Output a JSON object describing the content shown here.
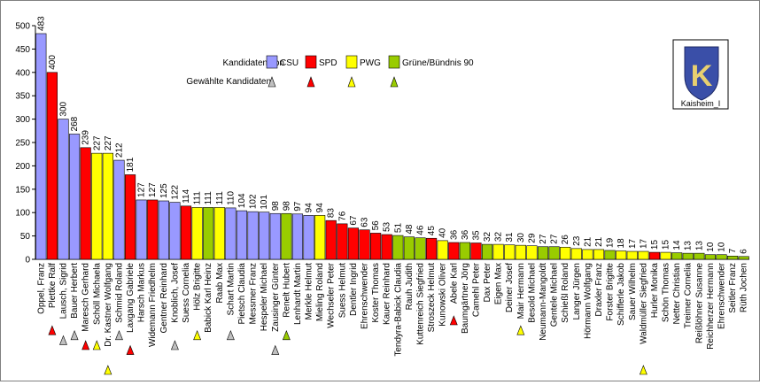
{
  "chart_data": {
    "type": "bar",
    "title": "",
    "xlabel": "",
    "ylabel": "",
    "ylim": [
      0,
      500
    ],
    "yticks": [
      0,
      50,
      100,
      150,
      200,
      250,
      300,
      350,
      400,
      450,
      500
    ],
    "grid": false,
    "legend_title": "Kandidaten von",
    "legend_elected_label": "Gewählte Kandidaten",
    "legend_placement": "top-center",
    "parties": [
      {
        "key": "CSU",
        "label": "CSU",
        "color": "#9999ff"
      },
      {
        "key": "SPD",
        "label": "SPD",
        "color": "#ff0000"
      },
      {
        "key": "PWG",
        "label": "PWG",
        "color": "#ffff00"
      },
      {
        "key": "GRUENE",
        "label": "Grüne/Bündnis 90",
        "color": "#99cc00"
      }
    ],
    "elected_colors": {
      "CSU": "#c0c0c0",
      "SPD": "#ff0000",
      "PWG": "#ffff00",
      "GRUENE": "#99cc00"
    },
    "candidates": [
      {
        "name": "Oppel, Franz",
        "value": 483,
        "party": "CSU",
        "elected": false
      },
      {
        "name": "Plettke Ralf",
        "value": 400,
        "party": "SPD",
        "elected": true
      },
      {
        "name": "Lausch, Sigrid",
        "value": 300,
        "party": "CSU",
        "elected": true
      },
      {
        "name": "Bauer Herbert",
        "value": 268,
        "party": "CSU",
        "elected": true
      },
      {
        "name": "Maresch Gerhard",
        "value": 239,
        "party": "SPD",
        "elected": true
      },
      {
        "name": "Schöll Michaela",
        "value": 227,
        "party": "PWG",
        "elected": true
      },
      {
        "name": "Dr. Kastner Wolfgang",
        "value": 227,
        "party": "PWG",
        "elected": true
      },
      {
        "name": "Schmid Roland",
        "value": 212,
        "party": "CSU",
        "elected": true
      },
      {
        "name": "Laxgang Gabriele",
        "value": 181,
        "party": "SPD",
        "elected": true
      },
      {
        "name": "Harsch Markus",
        "value": 127,
        "party": "CSU",
        "elected": false
      },
      {
        "name": "Widemann Friedhelm",
        "value": 127,
        "party": "SPD",
        "elected": false
      },
      {
        "name": "Gentner Reinhard",
        "value": 125,
        "party": "CSU",
        "elected": false
      },
      {
        "name": "Knoblich, Josef",
        "value": 122,
        "party": "CSU",
        "elected": true
      },
      {
        "name": "Suess Cornelia",
        "value": 114,
        "party": "SPD",
        "elected": false
      },
      {
        "name": "Hölz Brigitte",
        "value": 111,
        "party": "PWG",
        "elected": true
      },
      {
        "name": "Babick Karl Heinz",
        "value": 111,
        "party": "GRUENE",
        "elected": false
      },
      {
        "name": "Raab Max",
        "value": 111,
        "party": "PWG",
        "elected": false
      },
      {
        "name": "Schart Martin",
        "value": 110,
        "party": "CSU",
        "elected": true
      },
      {
        "name": "Pietsch Claudia",
        "value": 104,
        "party": "CSU",
        "elected": false
      },
      {
        "name": "Messmer Franz",
        "value": 102,
        "party": "CSU",
        "elected": false
      },
      {
        "name": "Hespeler Michael",
        "value": 101,
        "party": "CSU",
        "elected": false
      },
      {
        "name": "Zausinger Günter",
        "value": 98,
        "party": "CSU",
        "elected": true
      },
      {
        "name": "Renelt Hubert",
        "value": 98,
        "party": "GRUENE",
        "elected": true
      },
      {
        "name": "Lenhardt Martin",
        "value": 97,
        "party": "CSU",
        "elected": false
      },
      {
        "name": "Merkle Helmut",
        "value": 94,
        "party": "CSU",
        "elected": false
      },
      {
        "name": "Mieling Roland",
        "value": 94,
        "party": "PWG",
        "elected": false
      },
      {
        "name": "Wechseler Peter",
        "value": 83,
        "party": "SPD",
        "elected": false
      },
      {
        "name": "Suess Helmut",
        "value": 76,
        "party": "SPD",
        "elected": false
      },
      {
        "name": "Dentler Ingrid",
        "value": 67,
        "party": "SPD",
        "elected": false
      },
      {
        "name": "Ehrenschwender",
        "value": 63,
        "party": "SPD",
        "elected": false
      },
      {
        "name": "Koster Thomas",
        "value": 56,
        "party": "SPD",
        "elected": false
      },
      {
        "name": "Kauer Reinhard",
        "value": 53,
        "party": "SPD",
        "elected": false
      },
      {
        "name": "Tendyra-Babick Claudia",
        "value": 51,
        "party": "GRUENE",
        "elected": false
      },
      {
        "name": "Rauh Judith",
        "value": 48,
        "party": "GRUENE",
        "elected": false
      },
      {
        "name": "Kuttenreich Siegfried",
        "value": 46,
        "party": "GRUENE",
        "elected": false
      },
      {
        "name": "Stroszeck Helmut",
        "value": 45,
        "party": "SPD",
        "elected": false
      },
      {
        "name": "Kunowski Oliver",
        "value": 40,
        "party": "PWG",
        "elected": false
      },
      {
        "name": "Abele Karl",
        "value": 36,
        "party": "SPD",
        "elected": true
      },
      {
        "name": "Baumgärtner Jörg",
        "value": 36,
        "party": "GRUENE",
        "elected": false
      },
      {
        "name": "Camehl Peter",
        "value": 35,
        "party": "SPD",
        "elected": false
      },
      {
        "name": "Dax Peter",
        "value": 32,
        "party": "GRUENE",
        "elected": false
      },
      {
        "name": "Eigen Max",
        "value": 32,
        "party": "PWG",
        "elected": false
      },
      {
        "name": "Deiner Josef",
        "value": 31,
        "party": "PWG",
        "elected": false
      },
      {
        "name": "Mair Hermann",
        "value": 30,
        "party": "PWG",
        "elected": true
      },
      {
        "name": "Besold Michael",
        "value": 29,
        "party": "PWG",
        "elected": false
      },
      {
        "name": "Neumann-Mangoldt",
        "value": 27,
        "party": "GRUENE",
        "elected": false
      },
      {
        "name": "Gentele Michael",
        "value": 27,
        "party": "GRUENE",
        "elected": false
      },
      {
        "name": "Schießl Roland",
        "value": 26,
        "party": "PWG",
        "elected": false
      },
      {
        "name": "Langer Jürgen",
        "value": 23,
        "party": "PWG",
        "elected": false
      },
      {
        "name": "Hörmann Wolfgang",
        "value": 21,
        "party": "PWG",
        "elected": false
      },
      {
        "name": "Draxler Franz",
        "value": 21,
        "party": "PWG",
        "elected": false
      },
      {
        "name": "Forster Brigitte",
        "value": 19,
        "party": "GRUENE",
        "elected": false
      },
      {
        "name": "Schifferle Jakob",
        "value": 18,
        "party": "PWG",
        "elected": false
      },
      {
        "name": "Sauer Wilhelm",
        "value": 17,
        "party": "PWG",
        "elected": false
      },
      {
        "name": "Waldmüller Siegfried",
        "value": 17,
        "party": "PWG",
        "elected": true
      },
      {
        "name": "Hurler Monika",
        "value": 15,
        "party": "SPD",
        "elected": false
      },
      {
        "name": "Schön Thomas",
        "value": 15,
        "party": "PWG",
        "elected": false
      },
      {
        "name": "Netter Christian",
        "value": 14,
        "party": "GRUENE",
        "elected": false
      },
      {
        "name": "Treimer Cornelia",
        "value": 13,
        "party": "GRUENE",
        "elected": false
      },
      {
        "name": "Reißlöhner Susanne",
        "value": 13,
        "party": "GRUENE",
        "elected": false
      },
      {
        "name": "Reichherzer Hermann",
        "value": 10,
        "party": "GRUENE",
        "elected": false
      },
      {
        "name": "Ehrenschwender",
        "value": 10,
        "party": "GRUENE",
        "elected": false
      },
      {
        "name": "Seitler Franz",
        "value": 7,
        "party": "GRUENE",
        "elected": false
      },
      {
        "name": "Rüth Jochen",
        "value": 6,
        "party": "GRUENE",
        "elected": false
      }
    ]
  },
  "crest": {
    "caption": "Kaisheim_I",
    "letter": "K"
  }
}
